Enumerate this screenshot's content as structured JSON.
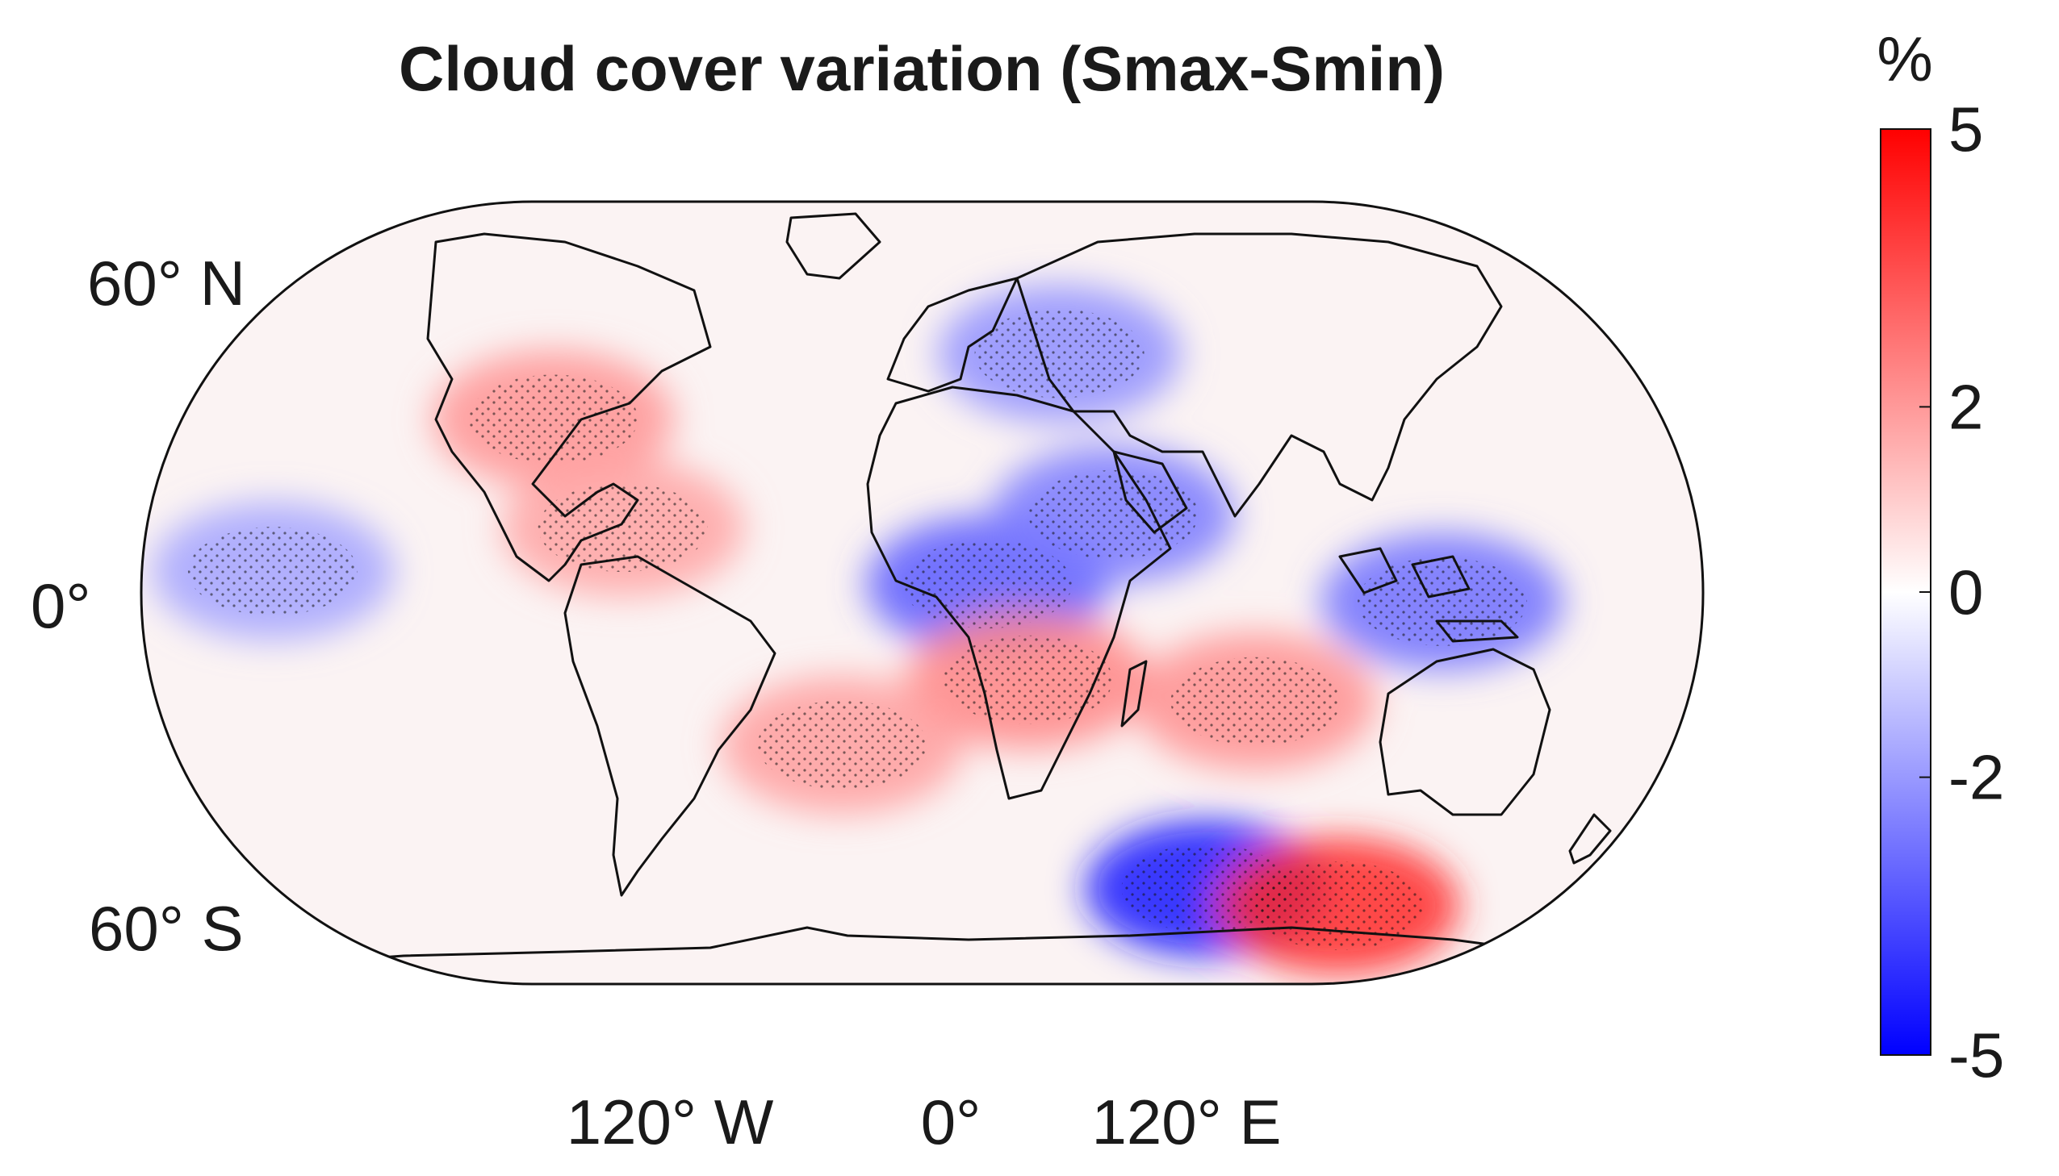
{
  "chart_data": {
    "type": "heatmap",
    "title": "Cloud cover variation (Smax-Smin)",
    "projection": "pseudocylindrical world map (rounded-rectangle outline)",
    "axes": {
      "latitude_ticks": [
        "60° N",
        "0°",
        "60° S"
      ],
      "latitude_values": [
        60,
        0,
        -60
      ],
      "longitude_ticks": [
        "120° W",
        "0°",
        "120° E"
      ],
      "longitude_values": [
        -120,
        0,
        120
      ]
    },
    "colorbar": {
      "label": "%",
      "min": -5,
      "max": 5,
      "ticks": [
        5,
        2,
        0,
        -2,
        -5
      ],
      "colormap": [
        "#0000ff",
        "#ffffff",
        "#ff0000"
      ]
    },
    "notes": "Stippling marks statistically significant regions",
    "regions": [
      {
        "name": "Central Africa",
        "lon": 15,
        "lat": 2,
        "value": -3.2
      },
      {
        "name": "Horn of Africa / Arabia",
        "lon": 45,
        "lat": 18,
        "value": -2.6
      },
      {
        "name": "Maritime Continent",
        "lon": 120,
        "lat": -2,
        "value": -2.8
      },
      {
        "name": "Tropical East Pacific",
        "lon": -150,
        "lat": 5,
        "value": -1.8
      },
      {
        "name": "Eastern Europe / Russia",
        "lon": 40,
        "lat": 55,
        "value": -2.2
      },
      {
        "name": "North America",
        "lon": -95,
        "lat": 40,
        "value": 2.1
      },
      {
        "name": "Southern Africa",
        "lon": 25,
        "lat": -20,
        "value": 2.4
      },
      {
        "name": "South Atlantic",
        "lon": -20,
        "lat": -35,
        "value": 1.9
      },
      {
        "name": "Indian Ocean south",
        "lon": 80,
        "lat": -25,
        "value": 2.2
      },
      {
        "name": "Caribbean",
        "lon": -70,
        "lat": 15,
        "value": 1.8
      },
      {
        "name": "East Antarctic coast",
        "lon": 100,
        "lat": -68,
        "value": -4.5
      },
      {
        "name": "Ross Sea sector",
        "lon": 160,
        "lat": -72,
        "value": 4.2
      }
    ]
  }
}
